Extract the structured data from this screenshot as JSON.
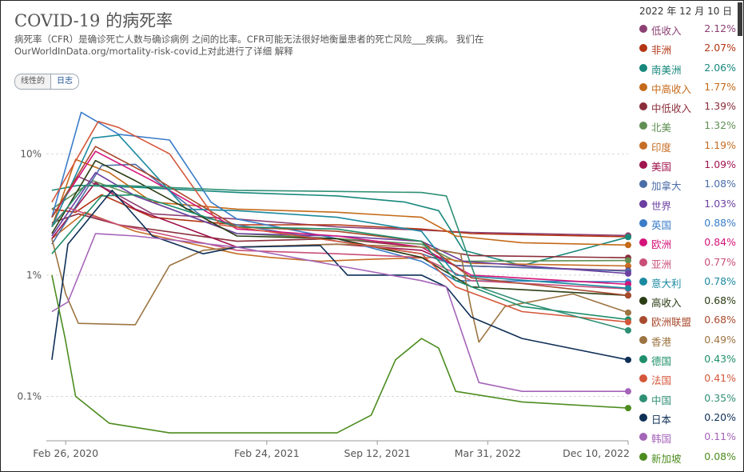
{
  "title": "COVID-19 的病死率",
  "subtitle": "病死率（CFR）是确诊死亡人数与确诊病例 之间的比率。CFR可能无法很好地衡量患者的死亡风险___疾病。 我们在OurWorldInData.org/mortality-risk-covid上对此进行了详细 解释",
  "scale_toggle": {
    "linear_label": "线性的",
    "log_label": "日志",
    "selected": "log"
  },
  "legend_date": "2022 年 12 月 10 日",
  "chart_data": {
    "type": "line",
    "y_scale": "log",
    "ylim": [
      0.045,
      30
    ],
    "y_ticks": [
      {
        "value": 0.1,
        "label": "0.1%"
      },
      {
        "value": 1,
        "label": "1%"
      },
      {
        "value": 10,
        "label": "10%"
      }
    ],
    "x_range": [
      "2020-01-22",
      "2022-12-10"
    ],
    "x_ticks": [
      {
        "date": "2020-02-26",
        "label": "Feb 26, 2020"
      },
      {
        "date": "2021-02-24",
        "label": "Feb 24, 2021"
      },
      {
        "date": "2021-09-12",
        "label": "Sep 12, 2021"
      },
      {
        "date": "2022-03-31",
        "label": "Mar 31, 2022"
      },
      {
        "date": "2022-12-10",
        "label": "Dec 10, 2022"
      }
    ],
    "grid": true,
    "legend_position": "right",
    "series": [
      {
        "name": "低收入",
        "color": "#8c3f73",
        "final": "2.12%",
        "points": [
          [
            "2020-02-01",
            3.0
          ],
          [
            "2020-03-20",
            6.5
          ],
          [
            "2020-05-15",
            5.0
          ],
          [
            "2020-08-01",
            3.2
          ],
          [
            "2021-01-01",
            2.9
          ],
          [
            "2021-07-01",
            2.5
          ],
          [
            "2021-12-01",
            2.35
          ],
          [
            "2022-03-01",
            2.25
          ],
          [
            "2022-12-10",
            2.12
          ]
        ]
      },
      {
        "name": "非洲",
        "color": "#b33514",
        "final": "2.07%",
        "points": [
          [
            "2020-02-01",
            3.5
          ],
          [
            "2020-03-15",
            3.3
          ],
          [
            "2020-05-01",
            4.6
          ],
          [
            "2020-08-01",
            3.0
          ],
          [
            "2021-01-01",
            2.6
          ],
          [
            "2021-07-01",
            2.6
          ],
          [
            "2021-12-01",
            2.4
          ],
          [
            "2022-03-01",
            2.2
          ],
          [
            "2022-12-10",
            2.07
          ]
        ]
      },
      {
        "name": "南美洲",
        "color": "#18887c",
        "final": "2.06%",
        "points": [
          [
            "2020-02-01",
            5.0
          ],
          [
            "2020-03-20",
            5.5
          ],
          [
            "2020-07-01",
            5.3
          ],
          [
            "2021-01-01",
            4.8
          ],
          [
            "2021-07-01",
            4.5
          ],
          [
            "2021-11-01",
            4.0
          ],
          [
            "2022-01-01",
            3.4
          ],
          [
            "2022-02-15",
            1.6
          ],
          [
            "2022-06-01",
            1.2
          ],
          [
            "2022-12-10",
            2.06
          ]
        ]
      },
      {
        "name": "中高收入",
        "color": "#c46a1a",
        "final": "1.77%",
        "points": [
          [
            "2020-02-01",
            2.5
          ],
          [
            "2020-03-15",
            9.0
          ],
          [
            "2020-05-15",
            7.0
          ],
          [
            "2020-08-01",
            4.0
          ],
          [
            "2021-01-01",
            3.5
          ],
          [
            "2021-07-01",
            3.3
          ],
          [
            "2021-12-01",
            3.0
          ],
          [
            "2022-02-01",
            2.1
          ],
          [
            "2022-06-01",
            1.85
          ],
          [
            "2022-12-10",
            1.77
          ]
        ]
      },
      {
        "name": "中低收入",
        "color": "#8a2d3a",
        "final": "1.39%",
        "points": [
          [
            "2020-02-01",
            2.7
          ],
          [
            "2020-03-20",
            3.2
          ],
          [
            "2020-06-01",
            2.6
          ],
          [
            "2021-01-01",
            1.9
          ],
          [
            "2021-07-01",
            2.0
          ],
          [
            "2021-12-01",
            1.7
          ],
          [
            "2022-03-01",
            1.45
          ],
          [
            "2022-12-10",
            1.39
          ]
        ]
      },
      {
        "name": "北美",
        "color": "#5f8f53",
        "final": "1.32%",
        "points": [
          [
            "2020-02-01",
            3.5
          ],
          [
            "2020-04-15",
            6.0
          ],
          [
            "2020-07-01",
            4.5
          ],
          [
            "2021-01-01",
            2.2
          ],
          [
            "2021-07-01",
            2.0
          ],
          [
            "2021-12-01",
            1.8
          ],
          [
            "2022-02-01",
            1.3
          ],
          [
            "2022-12-10",
            1.32
          ]
        ]
      },
      {
        "name": "印度",
        "color": "#c66d25",
        "final": "1.19%",
        "points": [
          [
            "2020-02-01",
            2.0
          ],
          [
            "2020-04-01",
            3.3
          ],
          [
            "2020-07-01",
            2.3
          ],
          [
            "2021-01-01",
            1.5
          ],
          [
            "2021-03-01",
            1.4
          ],
          [
            "2021-06-01",
            1.3
          ],
          [
            "2021-09-01",
            1.35
          ],
          [
            "2022-01-01",
            1.4
          ],
          [
            "2022-03-01",
            1.25
          ],
          [
            "2022-12-10",
            1.19
          ]
        ]
      },
      {
        "name": "美国",
        "color": "#a0154d",
        "final": "1.09%",
        "points": [
          [
            "2020-02-01",
            2.0
          ],
          [
            "2020-04-20",
            5.8
          ],
          [
            "2020-07-01",
            3.5
          ],
          [
            "2021-01-01",
            1.7
          ],
          [
            "2021-07-01",
            1.8
          ],
          [
            "2021-12-01",
            1.6
          ],
          [
            "2022-02-01",
            1.2
          ],
          [
            "2022-12-10",
            1.09
          ]
        ]
      },
      {
        "name": "加拿大",
        "color": "#4c6ea6",
        "final": "1.08%",
        "points": [
          [
            "2020-02-01",
            1.8
          ],
          [
            "2020-05-01",
            8.0
          ],
          [
            "2020-07-01",
            8.2
          ],
          [
            "2020-11-01",
            3.0
          ],
          [
            "2021-01-01",
            2.6
          ],
          [
            "2021-07-01",
            1.9
          ],
          [
            "2021-12-01",
            1.5
          ],
          [
            "2022-02-01",
            1.2
          ],
          [
            "2022-12-10",
            1.08
          ]
        ]
      },
      {
        "name": "世界",
        "color": "#6b3fa0",
        "final": "1.03%",
        "points": [
          [
            "2020-02-01",
            2.1
          ],
          [
            "2020-04-20",
            7.0
          ],
          [
            "2020-07-01",
            4.5
          ],
          [
            "2021-01-01",
            2.2
          ],
          [
            "2021-07-01",
            2.1
          ],
          [
            "2021-12-01",
            1.9
          ],
          [
            "2022-02-15",
            1.3
          ],
          [
            "2022-12-10",
            1.03
          ]
        ]
      },
      {
        "name": "英国",
        "color": "#3b7dc8",
        "final": "0.88%",
        "points": [
          [
            "2020-02-01",
            3.0
          ],
          [
            "2020-03-25",
            22.0
          ],
          [
            "2020-06-01",
            14.5
          ],
          [
            "2020-09-01",
            13.0
          ],
          [
            "2020-11-15",
            4.0
          ],
          [
            "2021-01-01",
            2.9
          ],
          [
            "2021-07-01",
            2.0
          ],
          [
            "2021-12-01",
            1.3
          ],
          [
            "2022-02-01",
            0.9
          ],
          [
            "2022-12-10",
            0.88
          ]
        ]
      },
      {
        "name": "欧洲",
        "color": "#d4147a",
        "final": "0.84%",
        "points": [
          [
            "2020-02-01",
            3.0
          ],
          [
            "2020-04-20",
            10.5
          ],
          [
            "2020-08-01",
            6.0
          ],
          [
            "2021-01-01",
            2.4
          ],
          [
            "2021-07-01",
            2.1
          ],
          [
            "2021-12-01",
            1.7
          ],
          [
            "2022-03-01",
            1.0
          ],
          [
            "2022-12-10",
            0.84
          ]
        ]
      },
      {
        "name": "亚洲",
        "color": "#c94f78",
        "final": "0.77%",
        "points": [
          [
            "2020-02-01",
            2.6
          ],
          [
            "2020-03-01",
            3.6
          ],
          [
            "2020-06-01",
            2.6
          ],
          [
            "2021-01-01",
            1.6
          ],
          [
            "2021-07-01",
            1.5
          ],
          [
            "2021-12-01",
            1.4
          ],
          [
            "2022-03-01",
            0.9
          ],
          [
            "2022-12-10",
            0.77
          ]
        ]
      },
      {
        "name": "意大利",
        "color": "#1b8aa0",
        "final": "0.78%",
        "points": [
          [
            "2020-02-01",
            2.5
          ],
          [
            "2020-04-15",
            13.5
          ],
          [
            "2020-06-01",
            14.3
          ],
          [
            "2020-10-01",
            3.5
          ],
          [
            "2021-01-01",
            3.4
          ],
          [
            "2021-07-01",
            3.0
          ],
          [
            "2021-12-01",
            2.3
          ],
          [
            "2022-02-01",
            1.0
          ],
          [
            "2022-12-10",
            0.78
          ]
        ]
      },
      {
        "name": "高收入",
        "color": "#2b3d14",
        "final": "0.68%",
        "points": [
          [
            "2020-02-01",
            2.2
          ],
          [
            "2020-04-20",
            8.8
          ],
          [
            "2020-07-01",
            6.0
          ],
          [
            "2021-01-01",
            2.1
          ],
          [
            "2021-07-01",
            2.0
          ],
          [
            "2021-12-01",
            1.4
          ],
          [
            "2022-03-01",
            0.8
          ],
          [
            "2022-12-10",
            0.68
          ]
        ]
      },
      {
        "name": "欧洲联盟",
        "color": "#a84a2d",
        "final": "0.68%",
        "points": [
          [
            "2020-02-01",
            3.0
          ],
          [
            "2020-04-20",
            11.5
          ],
          [
            "2020-08-01",
            6.5
          ],
          [
            "2021-01-01",
            2.5
          ],
          [
            "2021-07-01",
            2.3
          ],
          [
            "2021-12-01",
            1.9
          ],
          [
            "2022-03-01",
            0.95
          ],
          [
            "2022-12-10",
            0.68
          ]
        ]
      },
      {
        "name": "香港",
        "color": "#9c7442",
        "final": "0.49%",
        "points": [
          [
            "2020-02-01",
            2.0
          ],
          [
            "2020-02-26",
            0.7
          ],
          [
            "2020-03-20",
            0.4
          ],
          [
            "2020-07-01",
            0.39
          ],
          [
            "2020-09-01",
            1.2
          ],
          [
            "2020-11-01",
            1.6
          ],
          [
            "2021-01-01",
            1.7
          ],
          [
            "2021-07-01",
            1.8
          ],
          [
            "2021-12-01",
            1.7
          ],
          [
            "2022-02-10",
            1.5
          ],
          [
            "2022-02-28",
            0.55
          ],
          [
            "2022-03-15",
            0.28
          ],
          [
            "2022-05-01",
            0.55
          ],
          [
            "2022-09-01",
            0.7
          ],
          [
            "2022-12-10",
            0.49
          ]
        ]
      },
      {
        "name": "德国",
        "color": "#1f8f6b",
        "final": "0.43%",
        "points": [
          [
            "2020-02-01",
            1.5
          ],
          [
            "2020-05-01",
            4.5
          ],
          [
            "2020-07-01",
            4.6
          ],
          [
            "2021-01-01",
            2.5
          ],
          [
            "2021-07-01",
            2.4
          ],
          [
            "2021-12-01",
            1.9
          ],
          [
            "2022-02-01",
            0.9
          ],
          [
            "2022-06-01",
            0.55
          ],
          [
            "2022-12-10",
            0.43
          ]
        ]
      },
      {
        "name": "法国",
        "color": "#d4573b",
        "final": "0.41%",
        "points": [
          [
            "2020-02-01",
            4.0
          ],
          [
            "2020-04-25",
            18.5
          ],
          [
            "2020-06-01",
            16.5
          ],
          [
            "2020-09-01",
            10.0
          ],
          [
            "2020-12-01",
            2.6
          ],
          [
            "2021-07-01",
            1.9
          ],
          [
            "2021-12-01",
            1.5
          ],
          [
            "2022-02-01",
            0.8
          ],
          [
            "2022-06-01",
            0.5
          ],
          [
            "2022-12-10",
            0.41
          ]
        ]
      },
      {
        "name": "中国",
        "color": "#2f8f74",
        "final": "0.35%",
        "points": [
          [
            "2020-02-01",
            2.5
          ],
          [
            "2020-04-01",
            5.5
          ],
          [
            "2020-06-01",
            5.5
          ],
          [
            "2021-01-01",
            5.0
          ],
          [
            "2021-07-01",
            4.9
          ],
          [
            "2021-12-01",
            4.8
          ],
          [
            "2022-01-15",
            4.5
          ],
          [
            "2022-03-15",
            0.8
          ],
          [
            "2022-06-01",
            0.6
          ],
          [
            "2022-12-10",
            0.35
          ]
        ]
      },
      {
        "name": "日本",
        "color": "#0e2f56",
        "final": "0.20%",
        "points": [
          [
            "2020-02-01",
            0.2
          ],
          [
            "2020-03-01",
            1.8
          ],
          [
            "2020-05-20",
            5.0
          ],
          [
            "2020-08-01",
            2.1
          ],
          [
            "2020-11-01",
            1.5
          ],
          [
            "2021-01-01",
            1.7
          ],
          [
            "2021-06-01",
            1.75
          ],
          [
            "2021-07-20",
            1.0
          ],
          [
            "2021-12-01",
            1.0
          ],
          [
            "2022-01-15",
            0.8
          ],
          [
            "2022-03-01",
            0.45
          ],
          [
            "2022-06-01",
            0.3
          ],
          [
            "2022-12-10",
            0.2
          ]
        ]
      },
      {
        "name": "韩国",
        "color": "#a464b8",
        "final": "0.11%",
        "points": [
          [
            "2020-02-01",
            0.5
          ],
          [
            "2020-03-01",
            0.6
          ],
          [
            "2020-04-20",
            2.2
          ],
          [
            "2020-07-01",
            2.1
          ],
          [
            "2021-01-01",
            1.7
          ],
          [
            "2021-07-01",
            1.2
          ],
          [
            "2021-12-01",
            0.9
          ],
          [
            "2022-01-15",
            0.8
          ],
          [
            "2022-03-15",
            0.13
          ],
          [
            "2022-06-01",
            0.11
          ],
          [
            "2022-12-10",
            0.11
          ]
        ]
      },
      {
        "name": "新加坡",
        "color": "#4c8c1f",
        "final": "0.08%",
        "points": [
          [
            "2020-02-01",
            1.0
          ],
          [
            "2020-02-25",
            0.3
          ],
          [
            "2020-03-15",
            0.1
          ],
          [
            "2020-05-15",
            0.06
          ],
          [
            "2020-09-01",
            0.05
          ],
          [
            "2021-01-01",
            0.05
          ],
          [
            "2021-07-01",
            0.05
          ],
          [
            "2021-09-01",
            0.07
          ],
          [
            "2021-10-15",
            0.2
          ],
          [
            "2021-12-01",
            0.3
          ],
          [
            "2022-01-01",
            0.25
          ],
          [
            "2022-02-01",
            0.11
          ],
          [
            "2022-06-01",
            0.09
          ],
          [
            "2022-12-10",
            0.08
          ]
        ]
      }
    ]
  }
}
